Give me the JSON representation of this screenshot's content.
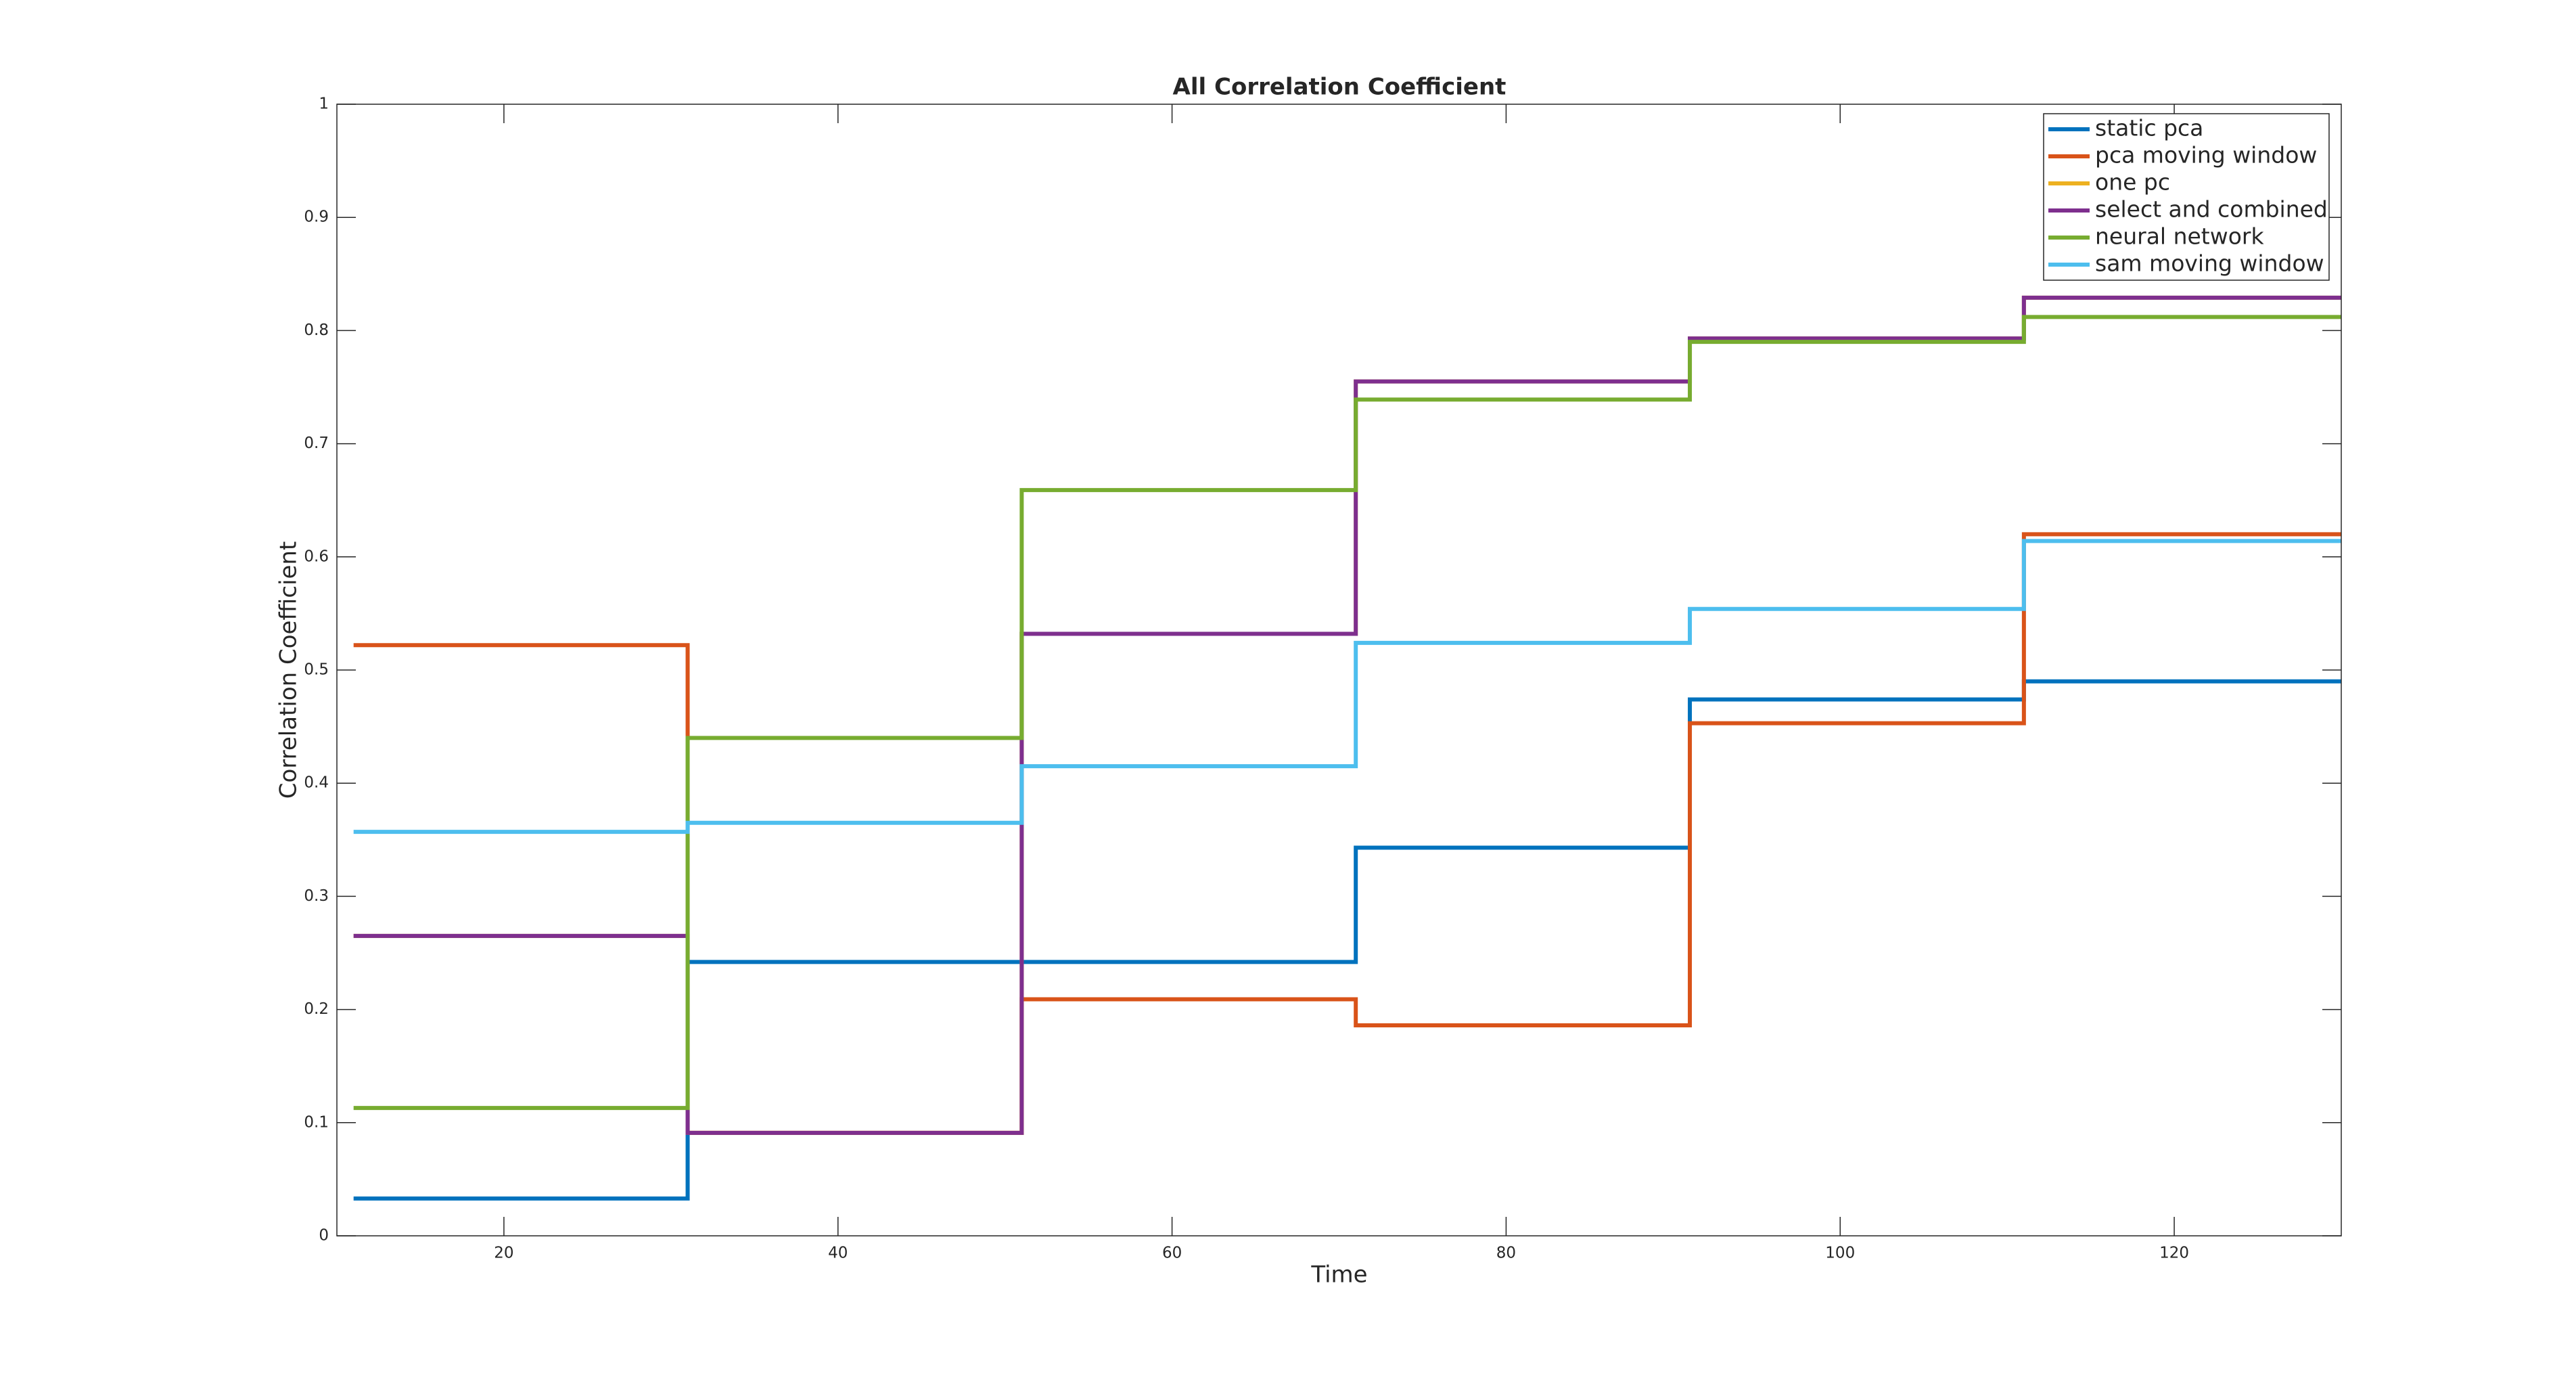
{
  "chart_data": {
    "type": "stairs",
    "title": "All Correlation Coefficient",
    "xlabel": "Time",
    "ylabel": "Correlation Coefficient",
    "x": [
      11,
      31,
      51,
      71,
      91,
      111,
      131
    ],
    "series": [
      {
        "name": "static pca",
        "color": "#0072BD",
        "values": [
          0.033,
          0.242,
          0.242,
          0.343,
          0.474,
          0.49,
          0.49
        ]
      },
      {
        "name": "pca moving window",
        "color": "#D95319",
        "values": [
          0.522,
          0.091,
          0.209,
          0.186,
          0.453,
          0.62,
          0.62
        ]
      },
      {
        "name": "one pc",
        "color": "#EDB120",
        "values": [
          0.265,
          0.091,
          0.532,
          0.755,
          0.793,
          0.829,
          0.829
        ]
      },
      {
        "name": "select and combined",
        "color": "#7E2F8E",
        "values": [
          0.265,
          0.091,
          0.532,
          0.755,
          0.793,
          0.829,
          0.829
        ]
      },
      {
        "name": "neural network",
        "color": "#77AC30",
        "values": [
          0.113,
          0.44,
          0.659,
          0.739,
          0.79,
          0.812,
          0.812
        ]
      },
      {
        "name": "sam moving window",
        "color": "#4DBEEE",
        "values": [
          0.357,
          0.365,
          0.415,
          0.524,
          0.554,
          0.614,
          0.614
        ]
      }
    ],
    "xlim": [
      10,
      130
    ],
    "xticks": [
      20,
      40,
      60,
      80,
      100,
      120
    ],
    "ylim": [
      0,
      1
    ],
    "yticks": [
      0,
      0.1,
      0.2,
      0.3,
      0.4,
      0.5,
      0.6,
      0.7,
      0.8,
      0.9,
      1
    ],
    "legend": "northeast"
  }
}
